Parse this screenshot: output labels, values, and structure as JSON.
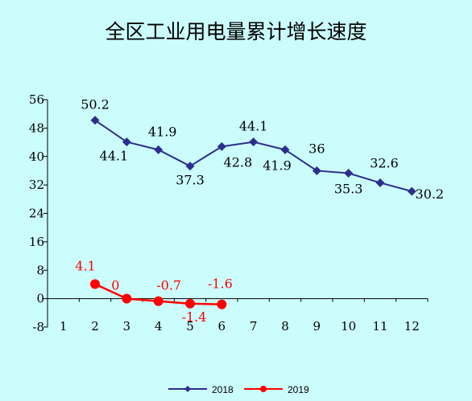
{
  "chart_data": {
    "type": "line",
    "title": "全区工业用电量累计增长速度",
    "xlabel": "",
    "ylabel": "",
    "x": [
      1,
      2,
      3,
      4,
      5,
      6,
      7,
      8,
      9,
      10,
      11,
      12
    ],
    "x_tick_labels": [
      "1",
      "2",
      "3",
      "4",
      "5",
      "6",
      "7",
      "8",
      "9",
      "10",
      "11",
      "12"
    ],
    "ylim": [
      -8,
      56
    ],
    "y_ticks": [
      -8,
      0,
      8,
      16,
      24,
      32,
      40,
      48,
      56
    ],
    "y_tick_labels": [
      "-8",
      "0",
      "8",
      "16",
      "24",
      "32",
      "40",
      "48",
      "56"
    ],
    "grid": false,
    "legend_position": "bottom",
    "series": [
      {
        "name": "2018",
        "color": "#2b2f8c",
        "marker": "diamond",
        "x": [
          2,
          3,
          4,
          5,
          6,
          7,
          8,
          9,
          10,
          11,
          12
        ],
        "values": [
          50.2,
          44.1,
          41.9,
          37.3,
          42.8,
          44.1,
          41.9,
          36,
          35.3,
          32.6,
          30.2
        ],
        "labels": [
          "50.2",
          "44.1",
          "41.9",
          "37.3",
          "42.8",
          "44.1",
          "41.9",
          "36",
          "35.3",
          "32.6",
          "30.2"
        ]
      },
      {
        "name": "2019",
        "color": "#ff0000",
        "marker": "circle",
        "x": [
          2,
          3,
          4,
          5,
          6
        ],
        "values": [
          4.1,
          0,
          -0.7,
          -1.4,
          -1.6
        ],
        "labels": [
          "4.1",
          "0",
          "-0.7",
          "-1.4",
          "-1.6"
        ]
      }
    ]
  }
}
